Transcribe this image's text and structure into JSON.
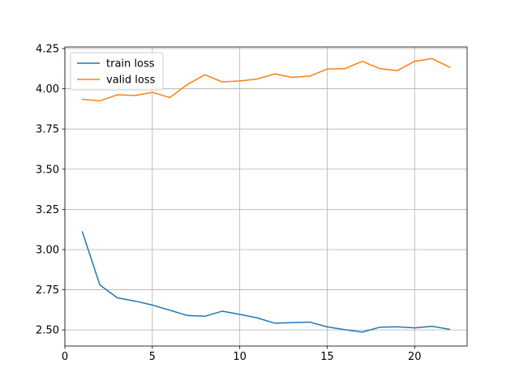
{
  "chart_data": {
    "type": "line",
    "title": "",
    "xlabel": "",
    "ylabel": "",
    "xlim": [
      0,
      23
    ],
    "ylim": [
      2.4,
      4.26
    ],
    "xticks": [
      0,
      5,
      10,
      15,
      20
    ],
    "yticks": [
      2.5,
      2.75,
      3.0,
      3.25,
      3.5,
      3.75,
      4.0,
      4.25
    ],
    "xtick_labels": [
      "0",
      "5",
      "10",
      "15",
      "20"
    ],
    "ytick_labels": [
      "2.50",
      "2.75",
      "3.00",
      "3.25",
      "3.50",
      "3.75",
      "4.00",
      "4.25"
    ],
    "grid": true,
    "legend_position": "top-left",
    "x": [
      1,
      2,
      3,
      4,
      5,
      6,
      7,
      8,
      9,
      10,
      11,
      12,
      13,
      14,
      15,
      16,
      17,
      18,
      19,
      20,
      21,
      22
    ],
    "series": [
      {
        "name": "train loss",
        "color": "#1f77b4",
        "values": [
          3.11,
          2.78,
          2.7,
          2.68,
          2.655,
          2.623,
          2.59,
          2.585,
          2.617,
          2.597,
          2.575,
          2.542,
          2.546,
          2.549,
          2.519,
          2.502,
          2.487,
          2.517,
          2.52,
          2.513,
          2.523,
          2.504
        ]
      },
      {
        "name": "valid loss",
        "color": "#ff7f0e",
        "values": [
          3.935,
          3.925,
          3.963,
          3.958,
          3.978,
          3.946,
          4.027,
          4.087,
          4.043,
          4.049,
          4.061,
          4.093,
          4.071,
          4.079,
          4.123,
          4.125,
          4.171,
          4.126,
          4.113,
          4.171,
          4.188,
          4.134
        ]
      }
    ]
  }
}
